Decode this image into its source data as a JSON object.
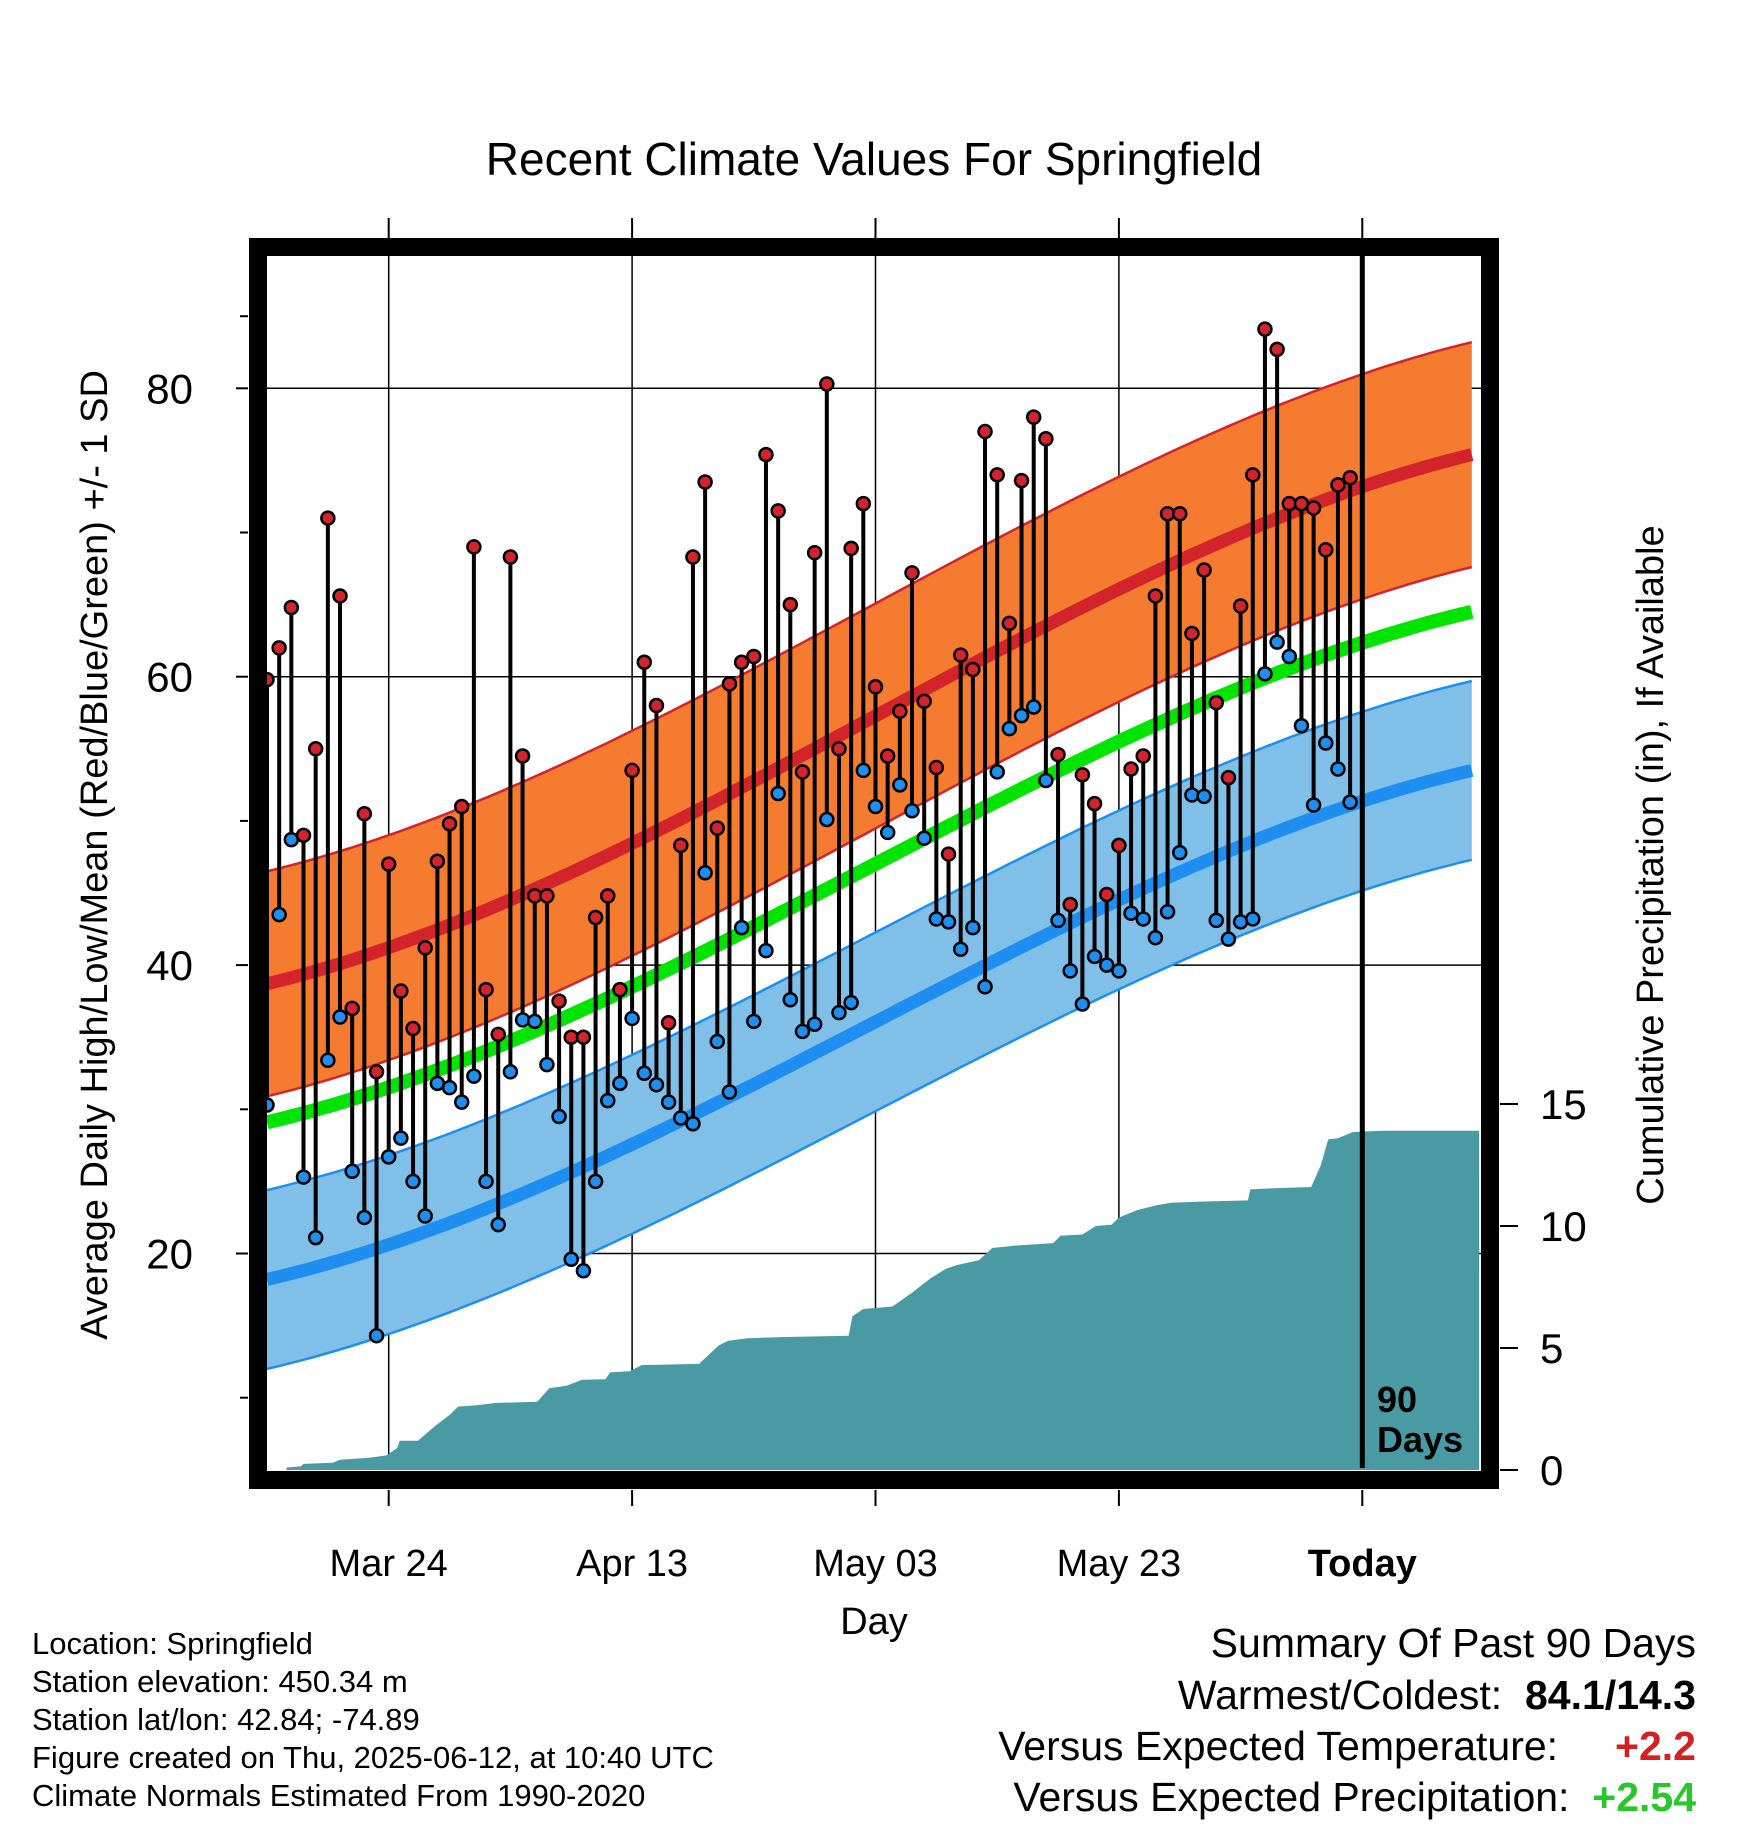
{
  "chart_data": {
    "type": "line",
    "title": "Recent Climate Values For Springfield",
    "xlabel": "Day",
    "ylabel": "Average Daily High/Low/Mean (Red/Blue/Green) +/- 1 SD",
    "y2label": "Cumulative Precipitation (in), If Available",
    "x_ticks": [
      "Mar 24",
      "Apr 13",
      "May 03",
      "May 23",
      "Today"
    ],
    "ylim": [
      2.3,
      87.0
    ],
    "y_ticks": [
      20,
      40,
      60,
      80
    ],
    "y2lim": [
      0,
      15
    ],
    "y2_ticks": [
      0,
      5,
      10,
      15
    ],
    "today_marker": "90\nDays",
    "days": 100,
    "today_index": 90,
    "normal_high": {
      "name": "Normal High",
      "mean_start": 38.7,
      "mean_end": 75.4,
      "sd": 7.8
    },
    "normal_low": {
      "name": "Normal Low",
      "mean_start": 18.2,
      "mean_end": 53.5,
      "sd": 6.2
    },
    "normal_mean": {
      "name": "Normal Mean",
      "mean_start": 29.1,
      "mean_end": 64.5
    },
    "daily_high": [
      59.8,
      62,
      64.8,
      49,
      55,
      71,
      65.6,
      37,
      50.5,
      32.6,
      47,
      38.2,
      35.6,
      41.2,
      47.2,
      49.8,
      51,
      69,
      38.3,
      35.2,
      68.3,
      54.5,
      44.8,
      44.8,
      37.5,
      35,
      35,
      43.3,
      44.8,
      38.3,
      53.5,
      61,
      58,
      36,
      48.3,
      68.3,
      73.5,
      49.5,
      59.5,
      61,
      61.4,
      75.4,
      71.5,
      65,
      53.4,
      68.6,
      80.3,
      55,
      68.9,
      72,
      59.3,
      54.5,
      57.6,
      67.2,
      58.3,
      53.7,
      47.7,
      61.5,
      60.5,
      77,
      74,
      63.7,
      73.6,
      78,
      76.5,
      54.6,
      44.2,
      53.2,
      51.2,
      44.9,
      48.3,
      53.6,
      54.5,
      65.6,
      71.3,
      71.3,
      63,
      67.4,
      58.2,
      53,
      64.9,
      74,
      84.1,
      82.7,
      72,
      72,
      71.7,
      68.8,
      73.3,
      73.8
    ],
    "daily_low": [
      30.3,
      43.5,
      48.7,
      25.3,
      21.1,
      33.4,
      36.4,
      25.7,
      22.5,
      14.3,
      26.7,
      28,
      25,
      22.6,
      31.8,
      31.5,
      30.5,
      32.3,
      25,
      22,
      32.6,
      36.2,
      36.1,
      33.1,
      29.5,
      19.6,
      18.8,
      25,
      30.6,
      31.8,
      36.3,
      32.5,
      31.7,
      30.5,
      29.4,
      29,
      46.4,
      34.7,
      31.2,
      42.6,
      36.1,
      41,
      51.9,
      37.6,
      35.4,
      35.9,
      50.1,
      36.7,
      37.4,
      53.5,
      51,
      49.2,
      52.5,
      50.7,
      48.8,
      43.2,
      43,
      41.1,
      42.6,
      38.5,
      53.4,
      56.4,
      57.3,
      57.9,
      52.8,
      43.1,
      39.6,
      37.3,
      40.6,
      40,
      39.6,
      43.6,
      43.2,
      41.9,
      43.7,
      47.8,
      51.8,
      51.7,
      43.1,
      41.8,
      43,
      43.2,
      60.2,
      62.4,
      61.4,
      56.6,
      51.1,
      55.4,
      53.6,
      51.3
    ],
    "precip_cum_points": [
      [
        1.6,
        0.1
      ],
      [
        2.8,
        0.15
      ],
      [
        3,
        0.25
      ],
      [
        5.4,
        0.3
      ],
      [
        6,
        0.42
      ],
      [
        8.4,
        0.5
      ],
      [
        9.8,
        0.6
      ],
      [
        10.7,
        0.9
      ],
      [
        10.9,
        1.2
      ],
      [
        12.4,
        1.2
      ],
      [
        13.8,
        1.8
      ],
      [
        14.2,
        1.95
      ],
      [
        15.1,
        2.3
      ],
      [
        15.7,
        2.6
      ],
      [
        17.2,
        2.65
      ],
      [
        18.9,
        2.75
      ],
      [
        22.2,
        2.8
      ],
      [
        23.2,
        3.35
      ],
      [
        24.6,
        3.45
      ],
      [
        25.9,
        3.7
      ],
      [
        27.8,
        3.72
      ],
      [
        28.2,
        4
      ],
      [
        29.8,
        4.05
      ],
      [
        30.8,
        4.3
      ],
      [
        35.5,
        4.35
      ],
      [
        37.1,
        5.1
      ],
      [
        37.9,
        5.3
      ],
      [
        39.5,
        5.4
      ],
      [
        42.6,
        5.45
      ],
      [
        47.8,
        5.5
      ],
      [
        48.1,
        6.3
      ],
      [
        49,
        6.6
      ],
      [
        51.4,
        6.7
      ],
      [
        53.1,
        7.3
      ],
      [
        54.5,
        7.85
      ],
      [
        55.8,
        8.25
      ],
      [
        56.7,
        8.4
      ],
      [
        58.5,
        8.6
      ],
      [
        59.6,
        9.1
      ],
      [
        61.6,
        9.2
      ],
      [
        64.6,
        9.3
      ],
      [
        65.2,
        9.6
      ],
      [
        67,
        9.65
      ],
      [
        68.1,
        10
      ],
      [
        69.4,
        10.05
      ],
      [
        70,
        10.35
      ],
      [
        71.5,
        10.65
      ],
      [
        73.1,
        10.85
      ],
      [
        74.3,
        10.95
      ],
      [
        76.7,
        11
      ],
      [
        80.6,
        11.05
      ],
      [
        80.8,
        11.5
      ],
      [
        82.8,
        11.55
      ],
      [
        85.8,
        11.6
      ],
      [
        86.6,
        12.5
      ],
      [
        87.2,
        13.55
      ],
      [
        88,
        13.6
      ],
      [
        89.2,
        13.85
      ],
      [
        91.5,
        13.9
      ],
      [
        99.6,
        13.9
      ]
    ]
  },
  "info": {
    "location": "Location: Springfield",
    "elevation": "Station elevation: 450.34 m",
    "latlon": "Station lat/lon: 42.84; -74.89",
    "created": "Figure created on Thu, 2025-06-12, at 10:40 UTC",
    "normals": "Climate Normals Estimated From 1990-2020"
  },
  "summary": {
    "heading": "Summary Of Past 90 Days",
    "warm_cold_label": "Warmest/Coldest:",
    "warm_cold_value": "84.1/14.3",
    "temp_label": "Versus Expected Temperature:",
    "temp_value": "+2.2",
    "precip_label": "Versus Expected Precipitation:",
    "precip_value": "+2.54"
  },
  "colors": {
    "high_band": "#f47b30",
    "high_line": "#d3232b",
    "low_band": "#80c0e8",
    "low_line": "#1e8ff0",
    "mean_line": "#00e400",
    "precip_fill": "#4a9aa4",
    "positive_temp": "#d42020",
    "positive_precip": "#28c828"
  }
}
